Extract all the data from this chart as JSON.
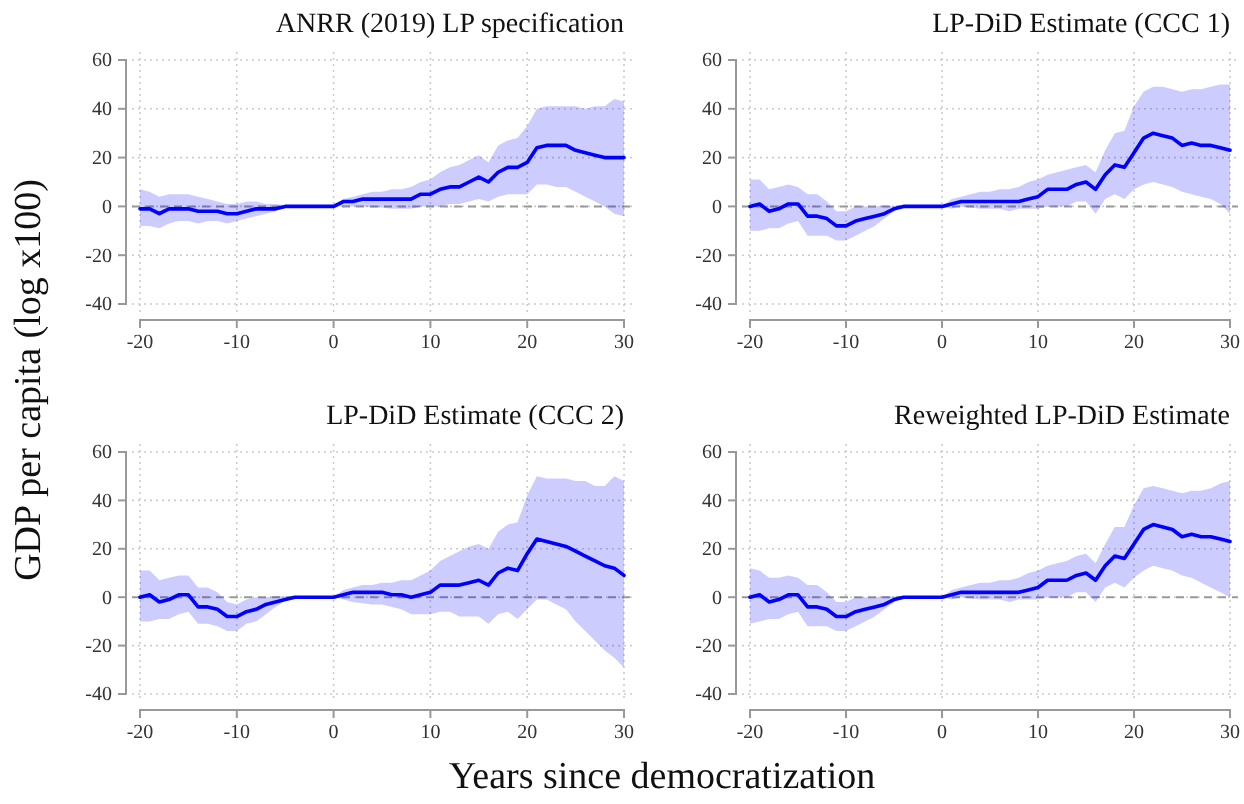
{
  "chart_data": [
    {
      "type": "line",
      "title": "ANRR (2019) LP specification",
      "xlabel": "Years since democratization",
      "ylabel": "GDP per capita (log x100)",
      "x": [
        -20,
        -19,
        -18,
        -17,
        -16,
        -15,
        -14,
        -13,
        -12,
        -11,
        -10,
        -9,
        -8,
        -7,
        -6,
        -5,
        -4,
        -3,
        -2,
        -1,
        0,
        1,
        2,
        3,
        4,
        5,
        6,
        7,
        8,
        9,
        10,
        11,
        12,
        13,
        14,
        15,
        16,
        17,
        18,
        19,
        20,
        21,
        22,
        23,
        24,
        25,
        26,
        27,
        28,
        29,
        30
      ],
      "series": [
        {
          "color": "#0000ff",
          "values": [
            -1,
            -1,
            -3,
            -1,
            -1,
            -1,
            -2,
            -2,
            -2,
            -3,
            -3,
            -2,
            -1,
            -1,
            -1,
            0,
            0,
            0,
            0,
            0,
            0,
            2,
            2,
            3,
            3,
            3,
            3,
            3,
            3,
            5,
            5,
            7,
            8,
            8,
            10,
            12,
            10,
            14,
            16,
            16,
            18,
            24,
            25,
            25,
            25,
            23,
            22,
            21,
            20,
            20,
            20
          ],
          "lower": [
            -8,
            -8,
            -9,
            -7,
            -6,
            -6,
            -7,
            -6,
            -6,
            -7,
            -6,
            -5,
            -4,
            -3,
            -2,
            -0.5,
            -0.5,
            -0.3,
            -0.2,
            0,
            0,
            0,
            0,
            0,
            -0.5,
            -0.5,
            -1,
            -1,
            -1,
            0,
            0,
            0,
            1,
            1,
            2,
            3,
            2,
            4,
            5,
            5,
            5,
            9,
            9,
            8,
            8,
            6,
            4,
            2,
            0,
            -3,
            -4
          ],
          "upper": [
            7,
            6,
            4,
            5,
            5,
            5,
            4,
            3,
            2,
            1,
            1,
            2,
            2,
            1,
            1,
            0.5,
            0.3,
            0.3,
            0.2,
            0,
            0,
            3,
            4,
            5,
            6,
            6,
            7,
            7,
            8,
            10,
            11,
            14,
            16,
            17,
            19,
            21,
            18,
            25,
            27,
            28,
            33,
            40,
            41,
            41,
            41,
            41,
            40,
            41,
            41,
            44,
            43
          ]
        }
      ],
      "xlim": [
        -20,
        30
      ],
      "xticks": [
        -20,
        -10,
        0,
        10,
        20,
        30
      ],
      "ylim": [
        -40,
        60
      ],
      "yticks": [
        -40,
        -20,
        0,
        20,
        40,
        60
      ],
      "grid": true,
      "ref_lines": [
        {
          "axis": "y",
          "value": 0,
          "color": "#999999",
          "line_style": "dashed"
        }
      ]
    },
    {
      "type": "line",
      "title": "LP-DiD Estimate (CCC 1)",
      "x": [
        -20,
        -19,
        -18,
        -17,
        -16,
        -15,
        -14,
        -13,
        -12,
        -11,
        -10,
        -9,
        -8,
        -7,
        -6,
        -5,
        -4,
        -3,
        -2,
        -1,
        0,
        1,
        2,
        3,
        4,
        5,
        6,
        7,
        8,
        9,
        10,
        11,
        12,
        13,
        14,
        15,
        16,
        17,
        18,
        19,
        20,
        21,
        22,
        23,
        24,
        25,
        26,
        27,
        28,
        29,
        30
      ],
      "series": [
        {
          "color": "#0000ff",
          "values": [
            0,
            1,
            -2,
            -1,
            1,
            1,
            -4,
            -4,
            -5,
            -8,
            -8,
            -6,
            -5,
            -4,
            -3,
            -1,
            0,
            0,
            0,
            0,
            0,
            1,
            2,
            2,
            2,
            2,
            2,
            2,
            2,
            3,
            4,
            7,
            7,
            7,
            9,
            10,
            7,
            13,
            17,
            16,
            22,
            28,
            30,
            29,
            28,
            25,
            26,
            25,
            25,
            24,
            23
          ],
          "lower": [
            -10,
            -10,
            -9,
            -9,
            -7,
            -6,
            -12,
            -12,
            -12,
            -14,
            -14,
            -12,
            -10,
            -8,
            -5,
            -2,
            -0.5,
            -0.3,
            -0.2,
            0,
            0,
            -1,
            0,
            -0.5,
            -1,
            -1,
            -1,
            -2,
            -1,
            -1,
            -1,
            0,
            0,
            0,
            2,
            2,
            -3,
            3,
            5,
            3,
            7,
            9,
            10,
            9,
            8,
            6,
            5,
            4,
            3,
            1,
            -3
          ],
          "upper": [
            11,
            11,
            7,
            8,
            9,
            8,
            5,
            5,
            2,
            -2,
            -2,
            0,
            0,
            0,
            0.5,
            0,
            0,
            0,
            0,
            0,
            0,
            3,
            4,
            5,
            6,
            6,
            7,
            7,
            8,
            10,
            11,
            13,
            14,
            15,
            16,
            17,
            14,
            23,
            30,
            31,
            41,
            47,
            49,
            49,
            48,
            47,
            48,
            48,
            49,
            50,
            50
          ]
        }
      ],
      "xlim": [
        -20,
        30
      ],
      "xticks": [
        -20,
        -10,
        0,
        10,
        20,
        30
      ],
      "ylim": [
        -40,
        60
      ],
      "yticks": [
        -40,
        -20,
        0,
        20,
        40,
        60
      ],
      "grid": true,
      "ref_lines": [
        {
          "axis": "y",
          "value": 0,
          "color": "#999999",
          "line_style": "dashed"
        }
      ]
    },
    {
      "type": "line",
      "title": "LP-DiD Estimate (CCC 2)",
      "x": [
        -20,
        -19,
        -18,
        -17,
        -16,
        -15,
        -14,
        -13,
        -12,
        -11,
        -10,
        -9,
        -8,
        -7,
        -6,
        -5,
        -4,
        -3,
        -2,
        -1,
        0,
        1,
        2,
        3,
        4,
        5,
        6,
        7,
        8,
        9,
        10,
        11,
        12,
        13,
        14,
        15,
        16,
        17,
        18,
        19,
        20,
        21,
        22,
        23,
        24,
        25,
        26,
        27,
        28,
        29,
        30
      ],
      "series": [
        {
          "color": "#0000ff",
          "values": [
            0,
            1,
            -2,
            -1,
            1,
            1,
            -4,
            -4,
            -5,
            -8,
            -8,
            -6,
            -5,
            -3,
            -2,
            -1,
            0,
            0,
            0,
            0,
            0,
            1,
            2,
            2,
            2,
            2,
            1,
            1,
            0,
            1,
            2,
            5,
            5,
            5,
            6,
            7,
            5,
            10,
            12,
            11,
            18,
            24,
            23,
            22,
            21,
            19,
            17,
            15,
            13,
            12,
            9
          ],
          "lower": [
            -10,
            -10,
            -9,
            -9,
            -7,
            -6,
            -11,
            -11,
            -12,
            -14,
            -14,
            -11,
            -10,
            -7,
            -4,
            -1.5,
            -0.5,
            -0.3,
            -0.2,
            0,
            0,
            -1,
            -2,
            -2.5,
            -3,
            -3,
            -4,
            -5,
            -7,
            -7,
            -7,
            -6,
            -6,
            -8,
            -8,
            -8,
            -11,
            -7,
            -6,
            -9,
            -5,
            -1,
            -1,
            -3,
            -5,
            -10,
            -14,
            -18,
            -22,
            -25,
            -29
          ],
          "upper": [
            11,
            11,
            7,
            8,
            9,
            9,
            4,
            4,
            2,
            -2,
            -3,
            -1,
            0,
            0,
            0.5,
            0.3,
            0,
            0,
            0,
            0,
            0,
            3,
            4,
            5,
            5,
            6,
            6,
            7,
            7,
            9,
            11,
            15,
            17,
            19,
            21,
            22,
            20,
            27,
            30,
            31,
            42,
            50,
            49,
            49,
            49,
            48,
            48,
            46,
            46,
            50,
            48
          ]
        }
      ],
      "xlim": [
        -20,
        30
      ],
      "xticks": [
        -20,
        -10,
        0,
        10,
        20,
        30
      ],
      "ylim": [
        -40,
        60
      ],
      "yticks": [
        -40,
        -20,
        0,
        20,
        40,
        60
      ],
      "grid": true,
      "ref_lines": [
        {
          "axis": "y",
          "value": 0,
          "color": "#999999",
          "line_style": "dashed"
        }
      ]
    },
    {
      "type": "line",
      "title": "Reweighted LP-DiD Estimate",
      "x": [
        -20,
        -19,
        -18,
        -17,
        -16,
        -15,
        -14,
        -13,
        -12,
        -11,
        -10,
        -9,
        -8,
        -7,
        -6,
        -5,
        -4,
        -3,
        -2,
        -1,
        0,
        1,
        2,
        3,
        4,
        5,
        6,
        7,
        8,
        9,
        10,
        11,
        12,
        13,
        14,
        15,
        16,
        17,
        18,
        19,
        20,
        21,
        22,
        23,
        24,
        25,
        26,
        27,
        28,
        29,
        30
      ],
      "series": [
        {
          "color": "#0000ff",
          "values": [
            0,
            1,
            -2,
            -1,
            1,
            1,
            -4,
            -4,
            -5,
            -8,
            -8,
            -6,
            -5,
            -4,
            -3,
            -1,
            0,
            0,
            0,
            0,
            0,
            1,
            2,
            2,
            2,
            2,
            2,
            2,
            2,
            3,
            4,
            7,
            7,
            7,
            9,
            10,
            7,
            13,
            17,
            16,
            22,
            28,
            30,
            29,
            28,
            25,
            26,
            25,
            25,
            24,
            23
          ],
          "lower": [
            -11,
            -10,
            -9,
            -9,
            -7,
            -6,
            -12,
            -12,
            -12,
            -14,
            -14,
            -12,
            -10,
            -8,
            -5,
            -2,
            -0.5,
            -0.3,
            -0.2,
            0,
            0,
            -1,
            0,
            -0.5,
            -1,
            -1,
            -1,
            -2,
            -1,
            -1,
            -1,
            0,
            0,
            0,
            2,
            2,
            -2,
            4,
            6,
            4,
            8,
            11,
            13,
            12,
            11,
            9,
            8,
            6,
            4,
            2,
            0
          ],
          "upper": [
            12,
            11,
            8,
            8,
            9,
            8,
            5,
            5,
            2,
            -2,
            -2,
            0,
            0,
            0,
            0.5,
            0.3,
            0,
            0,
            0,
            0,
            0,
            3,
            4,
            5,
            6,
            6,
            7,
            7,
            8,
            10,
            11,
            13,
            14,
            15,
            17,
            18,
            14,
            22,
            29,
            29,
            38,
            45,
            46,
            45,
            44,
            43,
            44,
            44,
            45,
            47,
            48
          ]
        }
      ],
      "xlim": [
        -20,
        30
      ],
      "xticks": [
        -20,
        -10,
        0,
        10,
        20,
        30
      ],
      "ylim": [
        -40,
        60
      ],
      "yticks": [
        -40,
        -20,
        0,
        20,
        40,
        60
      ],
      "grid": true,
      "ref_lines": [
        {
          "axis": "y",
          "value": 0,
          "color": "#999999",
          "line_style": "dashed"
        }
      ]
    }
  ]
}
